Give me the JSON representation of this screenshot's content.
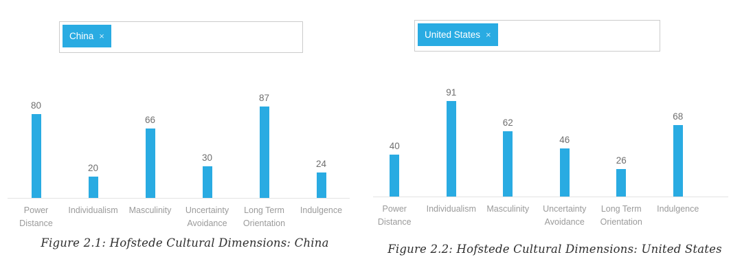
{
  "page": {
    "background": "#ffffff",
    "accent_color": "#29abe2"
  },
  "panels": [
    {
      "name": "china",
      "tag_input": {
        "chip": {
          "label": "China",
          "remove_icon": "×"
        }
      }
    },
    {
      "name": "united-states",
      "tag_input": {
        "chip": {
          "label": "United States",
          "remove_icon": "×"
        }
      }
    }
  ],
  "chart_data": [
    {
      "type": "bar",
      "title": "Figure 2.1: Hofstede Cultural Dimensions: China",
      "country": "China",
      "categories": [
        "Power Distance",
        "Individualism",
        "Masculinity",
        "Uncertainty Avoidance",
        "Long Term Orientation",
        "Indulgence"
      ],
      "values": [
        80,
        20,
        66,
        30,
        87,
        24
      ],
      "ylim": [
        0,
        100
      ],
      "grid": false,
      "legend": "none",
      "data_labels": true,
      "bar_color": "#29abe2",
      "value_label_color": "#6e6e6e",
      "category_label_color": "#9a9a9a",
      "axis_line_color": "#e2e2e2"
    },
    {
      "type": "bar",
      "title": "Figure 2.2: Hofstede Cultural Dimensions: United States",
      "country": "United States",
      "categories": [
        "Power Distance",
        "Individualism",
        "Masculinity",
        "Uncertainty Avoidance",
        "Long Term Orientation",
        "Indulgence"
      ],
      "values": [
        40,
        91,
        62,
        46,
        26,
        68
      ],
      "ylim": [
        0,
        100
      ],
      "grid": false,
      "legend": "none",
      "data_labels": true,
      "bar_color": "#29abe2",
      "value_label_color": "#6e6e6e",
      "category_label_color": "#9a9a9a",
      "axis_line_color": "#e2e2e2"
    }
  ]
}
